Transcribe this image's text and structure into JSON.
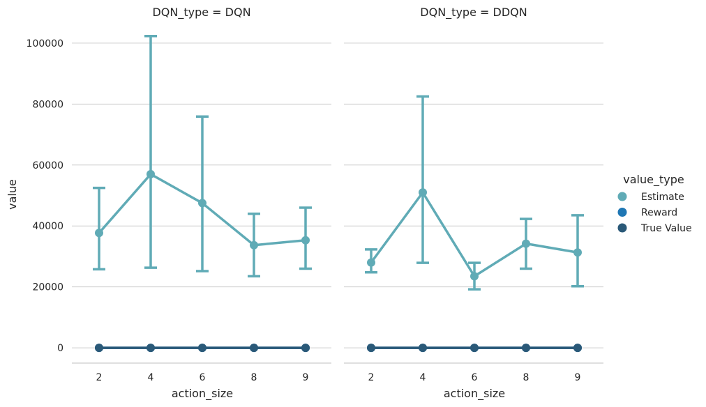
{
  "chart_data": {
    "type": "line",
    "kind": "pointplot with error bars, faceted",
    "hue_title": "value_type",
    "legend_position": "right",
    "grid": "horizontal",
    "ylabel": "value",
    "xlabel": "action_size",
    "yticks": [
      0,
      20000,
      40000,
      60000,
      80000,
      100000
    ],
    "ytick_labels": [
      "0",
      "20000",
      "40000",
      "60000",
      "80000",
      "100000"
    ],
    "ylim": [
      -5000,
      105000
    ],
    "categories": [
      "2",
      "4",
      "6",
      "8",
      "9"
    ],
    "legend": [
      {
        "name": "Estimate",
        "color": "#60abb6"
      },
      {
        "name": "Reward",
        "color": "#1f77b4"
      },
      {
        "name": "True Value",
        "color": "#2a5978"
      }
    ],
    "panels": [
      {
        "title": "DQN_type = DQN",
        "series": [
          {
            "name": "Estimate",
            "color": "#60abb6",
            "values": [
              37700,
              57000,
              47500,
              33700,
              35300
            ],
            "ci_low": [
              25800,
              26300,
              25200,
              23500,
              26000
            ],
            "ci_high": [
              52500,
              102300,
              75900,
              44000,
              46000
            ]
          },
          {
            "name": "Reward",
            "color": "#1f77b4",
            "values": [
              0,
              0,
              0,
              0,
              0
            ]
          },
          {
            "name": "True Value",
            "color": "#2a5978",
            "values": [
              0,
              0,
              0,
              0,
              0
            ]
          }
        ]
      },
      {
        "title": "DQN_type = DDQN",
        "series": [
          {
            "name": "Estimate",
            "color": "#60abb6",
            "values": [
              28000,
              51000,
              23500,
              34200,
              31300
            ],
            "ci_low": [
              24800,
              27900,
              19200,
              26000,
              20200
            ],
            "ci_high": [
              32300,
              82500,
              27900,
              42300,
              43500
            ]
          },
          {
            "name": "Reward",
            "color": "#1f77b4",
            "values": [
              0,
              0,
              0,
              0,
              0
            ]
          },
          {
            "name": "True Value",
            "color": "#2a5978",
            "values": [
              0,
              0,
              0,
              0,
              0
            ]
          }
        ]
      }
    ]
  }
}
